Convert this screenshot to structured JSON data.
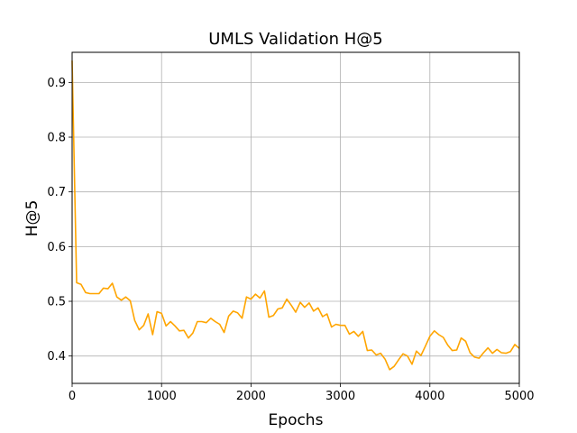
{
  "chart_data": {
    "type": "line",
    "title": "UMLS Validation H@5",
    "xlabel": "Epochs",
    "ylabel": "H@5",
    "xlim": [
      0,
      5000
    ],
    "ylim": [
      0.35,
      0.955
    ],
    "xticks": [
      0,
      1000,
      2000,
      3000,
      4000,
      5000
    ],
    "xtick_labels": [
      "0",
      "1000",
      "2000",
      "3000",
      "4000",
      "5000"
    ],
    "yticks": [
      0.4,
      0.5,
      0.6,
      0.7,
      0.8,
      0.9
    ],
    "ytick_labels": [
      "0.4",
      "0.5",
      "0.6",
      "0.7",
      "0.8",
      "0.9"
    ],
    "grid": true,
    "series": [
      {
        "color": "#ffa500",
        "x": [
          0,
          50,
          100,
          150,
          200,
          250,
          300,
          350,
          400,
          450,
          500,
          550,
          600,
          650,
          700,
          750,
          800,
          850,
          900,
          950,
          1000,
          1050,
          1100,
          1150,
          1200,
          1250,
          1300,
          1350,
          1400,
          1450,
          1500,
          1550,
          1600,
          1650,
          1700,
          1750,
          1800,
          1850,
          1900,
          1950,
          2000,
          2050,
          2100,
          2150,
          2200,
          2250,
          2300,
          2350,
          2400,
          2450,
          2500,
          2550,
          2600,
          2650,
          2700,
          2750,
          2800,
          2850,
          2900,
          2950,
          3000,
          3050,
          3100,
          3150,
          3200,
          3250,
          3300,
          3350,
          3400,
          3450,
          3500,
          3550,
          3600,
          3650,
          3700,
          3750,
          3800,
          3850,
          3900,
          3950,
          4000,
          4050,
          4100,
          4150,
          4200,
          4250,
          4300,
          4350,
          4400,
          4450,
          4500,
          4550,
          4600,
          4650,
          4700,
          4750,
          4800,
          4850,
          4900,
          4950,
          5000
        ],
        "y": [
          0.94,
          0.534,
          0.531,
          0.516,
          0.514,
          0.514,
          0.514,
          0.524,
          0.523,
          0.533,
          0.508,
          0.502,
          0.508,
          0.501,
          0.465,
          0.448,
          0.456,
          0.477,
          0.439,
          0.481,
          0.478,
          0.455,
          0.463,
          0.455,
          0.446,
          0.447,
          0.433,
          0.442,
          0.463,
          0.463,
          0.461,
          0.469,
          0.463,
          0.458,
          0.443,
          0.473,
          0.482,
          0.479,
          0.469,
          0.508,
          0.504,
          0.513,
          0.506,
          0.519,
          0.471,
          0.474,
          0.486,
          0.488,
          0.504,
          0.493,
          0.48,
          0.498,
          0.489,
          0.497,
          0.482,
          0.488,
          0.472,
          0.477,
          0.453,
          0.458,
          0.456,
          0.456,
          0.44,
          0.445,
          0.436,
          0.445,
          0.41,
          0.411,
          0.402,
          0.405,
          0.394,
          0.375,
          0.381,
          0.393,
          0.404,
          0.4,
          0.385,
          0.409,
          0.401,
          0.418,
          0.436,
          0.446,
          0.439,
          0.434,
          0.42,
          0.41,
          0.411,
          0.433,
          0.427,
          0.406,
          0.398,
          0.396,
          0.406,
          0.415,
          0.405,
          0.412,
          0.406,
          0.405,
          0.408,
          0.421,
          0.414
        ]
      }
    ]
  }
}
